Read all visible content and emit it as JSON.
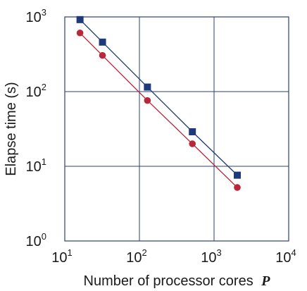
{
  "chart_data": {
    "type": "line",
    "xlabel": "Number of processor cores",
    "xlabel_var": "P",
    "ylabel": "Elapse time (s)",
    "xscale": "log",
    "yscale": "log",
    "xlim": [
      10,
      10000
    ],
    "ylim": [
      1,
      1000
    ],
    "grid": true,
    "legend": "none",
    "x_ticks": [
      {
        "base": "10",
        "exp": "1"
      },
      {
        "base": "10",
        "exp": "2"
      },
      {
        "base": "10",
        "exp": "3"
      },
      {
        "base": "10",
        "exp": "4"
      }
    ],
    "y_ticks": [
      {
        "base": "10",
        "exp": "0"
      },
      {
        "base": "10",
        "exp": "1"
      },
      {
        "base": "10",
        "exp": "2"
      },
      {
        "base": "10",
        "exp": "3"
      }
    ],
    "series": [
      {
        "marker": "square",
        "color": "#1f3a7a",
        "x": [
          16,
          32,
          128,
          512,
          2048
        ],
        "y": [
          920,
          460,
          115,
          29,
          7.6
        ]
      },
      {
        "marker": "circle",
        "color": "#b8283a",
        "x": [
          16,
          32,
          128,
          512,
          2048
        ],
        "y": [
          610,
          305,
          76,
          20,
          5.2
        ]
      }
    ],
    "colors": {
      "grid": "#2a3f73",
      "frame": "#2a3f73"
    }
  }
}
